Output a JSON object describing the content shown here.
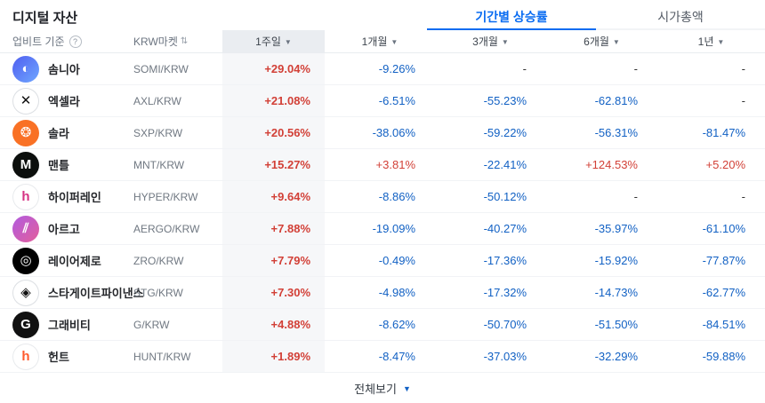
{
  "header": {
    "title": "디지털 자산",
    "tabs": [
      {
        "id": "period-return",
        "label": "기간별 상승률",
        "active": true
      },
      {
        "id": "market-cap",
        "label": "시가총액",
        "active": false
      }
    ]
  },
  "table": {
    "header": {
      "basis": "업비트 기준",
      "help_icon": "?",
      "market": "KRW마켓",
      "sort_icon": "⇅",
      "periods": [
        "1주일",
        "1개월",
        "3개월",
        "6개월",
        "1년"
      ],
      "dropdown_icon": "▼"
    },
    "rows": [
      {
        "name": "솜니아",
        "symbol": "SOMI/KRW",
        "icon": {
          "name": "somnia-icon",
          "glyph": "◐",
          "bg": "#4f5ef0",
          "bg2": "#6fa7ff",
          "color": "#ffffff"
        },
        "values": [
          "+29.04%",
          "-9.26%",
          "-",
          "-",
          "-"
        ]
      },
      {
        "name": "엑셀라",
        "symbol": "AXL/KRW",
        "icon": {
          "name": "axelar-icon",
          "glyph": "✕",
          "bg": "#ffffff",
          "color": "#111111",
          "border": "#dcdfe3"
        },
        "values": [
          "+21.08%",
          "-6.51%",
          "-55.23%",
          "-62.81%",
          "-"
        ]
      },
      {
        "name": "솔라",
        "symbol": "SXP/KRW",
        "icon": {
          "name": "solar-icon",
          "glyph": "❂",
          "bg": "#f97125",
          "color": "#ffffff"
        },
        "values": [
          "+20.56%",
          "-38.06%",
          "-59.22%",
          "-56.31%",
          "-81.47%"
        ]
      },
      {
        "name": "맨틀",
        "symbol": "MNT/KRW",
        "icon": {
          "name": "mantle-icon",
          "glyph": "M",
          "bg": "#0c0f0d",
          "color": "#ffffff"
        },
        "values": [
          "+15.27%",
          "+3.81%",
          "-22.41%",
          "+124.53%",
          "+5.20%"
        ]
      },
      {
        "name": "하이퍼레인",
        "symbol": "HYPER/KRW",
        "icon": {
          "name": "hyperlane-icon",
          "glyph": "h",
          "bg": "#ffffff",
          "color": "#d63384",
          "border": "#e8eaed"
        },
        "values": [
          "+9.64%",
          "-8.86%",
          "-50.12%",
          "-",
          "-"
        ]
      },
      {
        "name": "아르고",
        "symbol": "AERGO/KRW",
        "icon": {
          "name": "aergo-icon",
          "glyph": "⫽",
          "bg": "#b15be0",
          "bg2": "#e35f9b",
          "color": "#ffffff"
        },
        "values": [
          "+7.88%",
          "-19.09%",
          "-40.27%",
          "-35.97%",
          "-61.10%"
        ]
      },
      {
        "name": "레이어제로",
        "symbol": "ZRO/KRW",
        "icon": {
          "name": "layerzero-icon",
          "glyph": "◎",
          "bg": "#000000",
          "color": "#ffffff"
        },
        "values": [
          "+7.79%",
          "-0.49%",
          "-17.36%",
          "-15.92%",
          "-77.87%"
        ]
      },
      {
        "name": "스타게이트파이낸스",
        "symbol": "STG/KRW",
        "icon": {
          "name": "stargate-finance-icon",
          "glyph": "◈",
          "bg": "#ffffff",
          "color": "#111111",
          "border": "#dcdfe3"
        },
        "values": [
          "+7.30%",
          "-4.98%",
          "-17.32%",
          "-14.73%",
          "-62.77%"
        ]
      },
      {
        "name": "그래비티",
        "symbol": "G/KRW",
        "icon": {
          "name": "gravity-icon",
          "glyph": "G",
          "bg": "#111111",
          "color": "#ffffff"
        },
        "values": [
          "+4.88%",
          "-8.62%",
          "-50.70%",
          "-51.50%",
          "-84.51%"
        ]
      },
      {
        "name": "헌트",
        "symbol": "HUNT/KRW",
        "icon": {
          "name": "hunt-icon",
          "glyph": "h",
          "bg": "#ffffff",
          "color": "#ff5a2d",
          "border": "#e8eaed"
        },
        "values": [
          "+1.89%",
          "-8.47%",
          "-37.03%",
          "-32.29%",
          "-59.88%"
        ]
      }
    ]
  },
  "footer": {
    "view_all": "전체보기",
    "arrow_icon": "▼"
  },
  "colors": {
    "up": "#d24037",
    "down": "#1261c4",
    "accent": "#0a6cf1",
    "highlight_col_bg": "#f6f7f9",
    "highlight_head_bg": "#eaedf1"
  }
}
